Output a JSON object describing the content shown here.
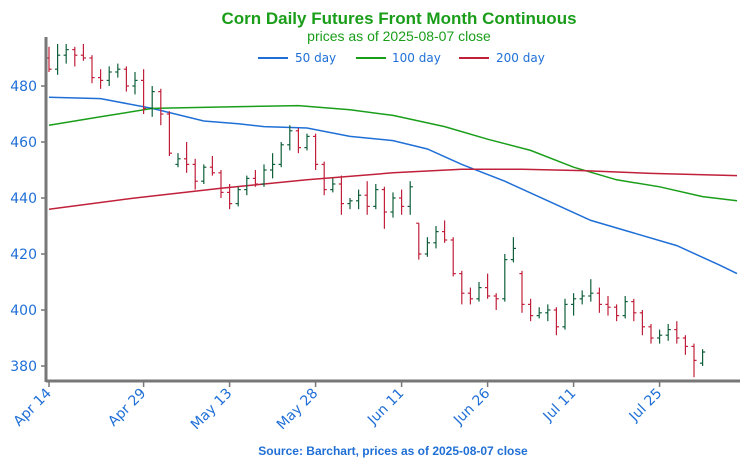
{
  "chart_data": {
    "type": "candlestick",
    "title": "Corn Daily Futures Front Month Continuous",
    "subtitle": "prices as of 2025-08-07 close",
    "source": "Source: Barchart, prices as of 2025-08-07 close",
    "ylim": [
      374,
      497
    ],
    "y_ticks": [
      380,
      400,
      420,
      440,
      460,
      480
    ],
    "x_tick_labels": [
      "Apr 14",
      "Apr 29",
      "May 13",
      "May 28",
      "Jun 11",
      "Jun 26",
      "Jul 11",
      "Jul 25"
    ],
    "x_tick_indices": [
      0,
      11,
      21,
      31,
      41,
      51,
      61,
      71
    ],
    "grid": false,
    "legend_position": "top-center",
    "colors": {
      "title": "#1a9e1a",
      "up": "#0f5f3a",
      "down": "#c0203a",
      "axis": "#777777",
      "tick_text": "#1f6fd6"
    },
    "series": [
      {
        "name": "50 day",
        "color": "#1f6fd6",
        "values": [
          [
            0,
            476
          ],
          [
            6,
            475.5
          ],
          [
            12,
            472
          ],
          [
            18,
            467.5
          ],
          [
            22,
            466.5
          ],
          [
            25,
            465.5
          ],
          [
            30,
            465
          ],
          [
            35,
            462
          ],
          [
            40,
            460.5
          ],
          [
            44,
            457.5
          ],
          [
            48,
            452
          ],
          [
            53,
            446
          ],
          [
            58,
            439
          ],
          [
            63,
            432
          ],
          [
            68,
            427.5
          ],
          [
            73,
            423
          ],
          [
            78,
            416
          ],
          [
            80,
            413
          ]
        ]
      },
      {
        "name": "100 day",
        "color": "#1a9e1a",
        "values": [
          [
            0,
            466
          ],
          [
            6,
            469
          ],
          [
            12,
            472
          ],
          [
            20,
            472.5
          ],
          [
            29,
            473
          ],
          [
            35,
            471.5
          ],
          [
            40,
            469.5
          ],
          [
            46,
            465.5
          ],
          [
            51,
            461
          ],
          [
            56,
            457
          ],
          [
            61,
            451
          ],
          [
            66,
            446.5
          ],
          [
            71,
            444
          ],
          [
            76,
            440.5
          ],
          [
            80,
            439
          ]
        ]
      },
      {
        "name": "200 day",
        "color": "#c0203a",
        "values": [
          [
            0,
            436
          ],
          [
            10,
            440
          ],
          [
            20,
            443.5
          ],
          [
            30,
            446.5
          ],
          [
            40,
            449
          ],
          [
            48,
            450.3
          ],
          [
            55,
            450.3
          ],
          [
            62,
            449.8
          ],
          [
            70,
            448.8
          ],
          [
            80,
            448
          ]
        ]
      }
    ],
    "candles": [
      [
        490,
        494,
        485,
        486
      ],
      [
        486,
        495,
        484,
        491
      ],
      [
        491,
        495,
        488,
        493
      ],
      [
        493,
        494,
        487,
        491
      ],
      [
        491,
        495,
        489,
        490
      ],
      [
        490,
        491,
        481,
        483
      ],
      [
        483,
        486,
        479,
        482
      ],
      [
        482,
        487,
        480,
        485
      ],
      [
        485,
        488,
        483,
        486
      ],
      [
        486,
        487,
        478,
        480
      ],
      [
        480,
        485,
        477,
        482
      ],
      [
        482,
        486,
        470,
        472
      ],
      [
        472,
        480,
        469,
        478
      ],
      [
        478,
        479,
        466,
        470
      ],
      [
        470,
        471,
        455,
        456
      ],
      [
        452,
        456,
        451,
        454
      ],
      [
        454,
        460,
        449,
        452
      ],
      [
        452,
        454,
        443,
        446
      ],
      [
        446,
        452,
        445,
        451
      ],
      [
        451,
        455,
        448,
        449
      ],
      [
        449,
        450,
        440,
        442
      ],
      [
        442,
        445,
        436,
        438
      ],
      [
        438,
        444,
        437,
        443
      ],
      [
        443,
        448,
        441,
        447
      ],
      [
        447,
        450,
        444,
        445
      ],
      [
        445,
        452,
        444,
        450
      ],
      [
        450,
        456,
        447,
        452
      ],
      [
        452,
        460,
        451,
        459
      ],
      [
        459,
        466,
        457,
        464
      ],
      [
        464,
        465,
        456,
        458
      ],
      [
        458,
        463,
        457,
        462
      ],
      [
        462,
        463,
        450,
        452
      ],
      [
        452,
        453,
        441,
        443
      ],
      [
        443,
        447,
        442,
        445
      ],
      [
        445,
        448,
        434,
        438
      ],
      [
        438,
        440,
        436,
        439
      ],
      [
        439,
        443,
        436,
        441
      ],
      [
        441,
        446,
        434,
        437
      ],
      [
        437,
        445,
        436,
        443
      ],
      [
        443,
        444,
        429,
        435
      ],
      [
        435,
        442,
        433,
        440
      ],
      [
        440,
        443,
        434,
        437
      ],
      [
        437,
        446,
        434,
        444
      ],
      [
        431,
        431,
        418,
        420
      ],
      [
        420,
        426,
        419,
        424
      ],
      [
        424,
        430,
        422,
        428
      ],
      [
        428,
        432,
        424,
        425
      ],
      [
        425,
        426,
        412,
        413
      ],
      [
        413,
        414,
        402,
        406
      ],
      [
        406,
        408,
        402,
        404
      ],
      [
        404,
        410,
        403,
        408
      ],
      [
        408,
        413,
        404,
        405
      ],
      [
        405,
        406,
        400,
        404
      ],
      [
        404,
        420,
        403,
        418
      ],
      [
        418,
        426,
        417,
        422
      ],
      [
        413,
        414,
        399,
        402
      ],
      [
        402,
        404,
        396,
        398
      ],
      [
        398,
        401,
        397,
        399
      ],
      [
        399,
        402,
        396,
        400
      ],
      [
        400,
        401,
        391,
        394
      ],
      [
        394,
        404,
        393,
        402
      ],
      [
        402,
        406,
        398,
        404
      ],
      [
        404,
        407,
        402,
        405
      ],
      [
        405,
        411,
        403,
        406
      ],
      [
        406,
        408,
        399,
        402
      ],
      [
        402,
        405,
        398,
        401
      ],
      [
        401,
        402,
        396,
        398
      ],
      [
        398,
        405,
        397,
        403
      ],
      [
        403,
        404,
        396,
        399
      ],
      [
        399,
        400,
        391,
        394
      ],
      [
        394,
        395,
        388,
        390
      ],
      [
        390,
        393,
        388,
        391
      ],
      [
        391,
        395,
        389,
        393
      ],
      [
        393,
        396,
        388,
        390
      ],
      [
        390,
        391,
        384,
        387
      ],
      [
        387,
        388,
        376,
        382
      ],
      [
        381,
        386,
        380,
        385
      ]
    ]
  }
}
